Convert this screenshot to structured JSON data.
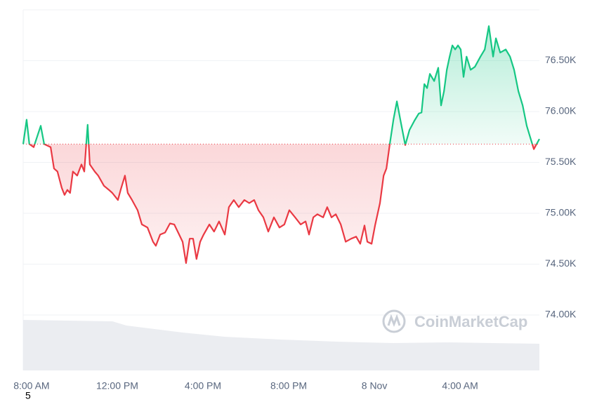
{
  "chart_data": {
    "type": "line",
    "x": [
      -0.39,
      -0.23,
      -0.1,
      0.1,
      0.43,
      0.59,
      0.89,
      1.05,
      1.21,
      1.41,
      1.54,
      1.67,
      1.8,
      1.93,
      2.13,
      2.33,
      2.46,
      2.62,
      2.72,
      2.95,
      3.11,
      3.38,
      3.61,
      3.77,
      4.03,
      4.16,
      4.36,
      4.49,
      4.69,
      4.95,
      5.15,
      5.41,
      5.67,
      5.8,
      6.0,
      6.23,
      6.46,
      6.66,
      6.89,
      7.05,
      7.21,
      7.38,
      7.54,
      7.7,
      7.87,
      8.03,
      8.3,
      8.52,
      8.75,
      9.02,
      9.21,
      9.44,
      9.67,
      9.93,
      10.16,
      10.39,
      10.59,
      10.82,
      11.05,
      11.31,
      11.57,
      11.8,
      12.03,
      12.3,
      12.56,
      12.79,
      12.95,
      13.15,
      13.34,
      13.61,
      13.8,
      14.0,
      14.2,
      14.43,
      14.66,
      14.92,
      15.15,
      15.34,
      15.54,
      15.67,
      15.87,
      16.03,
      16.26,
      16.43,
      16.56,
      16.72,
      16.89,
      17.05,
      17.21,
      17.44,
      17.64,
      17.87,
      18.07,
      18.2,
      18.33,
      18.46,
      18.59,
      18.79,
      18.98,
      19.11,
      19.25,
      19.38,
      19.51,
      19.64,
      19.77,
      19.9,
      20.03,
      20.16,
      20.3,
      20.49,
      20.69,
      20.95,
      21.15,
      21.34,
      21.54,
      21.67,
      21.87,
      22.13,
      22.33,
      22.52,
      22.72,
      22.92,
      23.11,
      23.31,
      23.44,
      23.57,
      23.7
    ],
    "series": [
      {
        "up_color": "#16c784",
        "down_color": "#ea3943",
        "values": [
          75680,
          75920,
          75680,
          75650,
          75860,
          75680,
          75650,
          75440,
          75410,
          75250,
          75180,
          75230,
          75200,
          75410,
          75370,
          75480,
          75410,
          75870,
          75480,
          75410,
          75370,
          75270,
          75230,
          75200,
          75130,
          75230,
          75370,
          75200,
          75130,
          75030,
          74890,
          74860,
          74720,
          74680,
          74790,
          74810,
          74900,
          74890,
          74790,
          74720,
          74510,
          74750,
          74750,
          74550,
          74720,
          74790,
          74890,
          74820,
          74920,
          74790,
          75060,
          75130,
          75060,
          75130,
          75100,
          75130,
          75030,
          74960,
          74820,
          74960,
          74860,
          74890,
          75030,
          74960,
          74890,
          74920,
          74790,
          74960,
          74990,
          74960,
          75060,
          74960,
          74990,
          74890,
          74720,
          74750,
          74770,
          74700,
          74880,
          74720,
          74700,
          74880,
          75100,
          75370,
          75440,
          75680,
          75920,
          76100,
          75920,
          75670,
          75820,
          75910,
          75980,
          75990,
          76270,
          76230,
          76370,
          76300,
          76430,
          76060,
          76200,
          76410,
          76540,
          76650,
          76610,
          76650,
          76610,
          76340,
          76540,
          76410,
          76440,
          76540,
          76610,
          76840,
          76540,
          76720,
          76580,
          76610,
          76540,
          76410,
          76200,
          76060,
          75860,
          75720,
          75630,
          75680,
          75730
        ]
      }
    ],
    "baseline": 75680,
    "xlim": [
      -0.39,
      23.7
    ],
    "xticks": [
      {
        "value": 0,
        "label": "8:00 AM"
      },
      {
        "value": 4,
        "label": "12:00 PM"
      },
      {
        "value": 8,
        "label": "4:00 PM"
      },
      {
        "value": 12,
        "label": "8:00 PM"
      },
      {
        "value": 16,
        "label": "8 Nov"
      },
      {
        "value": 20,
        "label": "4:00 AM"
      }
    ],
    "ylim": [
      73455,
      77000
    ],
    "yticks": [
      {
        "value": 74000,
        "label": "74.00K"
      },
      {
        "value": 74500,
        "label": "74.50K"
      },
      {
        "value": 75000,
        "label": "75.00K"
      },
      {
        "value": 75500,
        "label": "75.50K"
      },
      {
        "value": 76000,
        "label": "76.00K"
      },
      {
        "value": 76500,
        "label": "76.50K"
      }
    ],
    "grid": true,
    "watermark": "CoinMarketCap",
    "footnote": "5"
  }
}
